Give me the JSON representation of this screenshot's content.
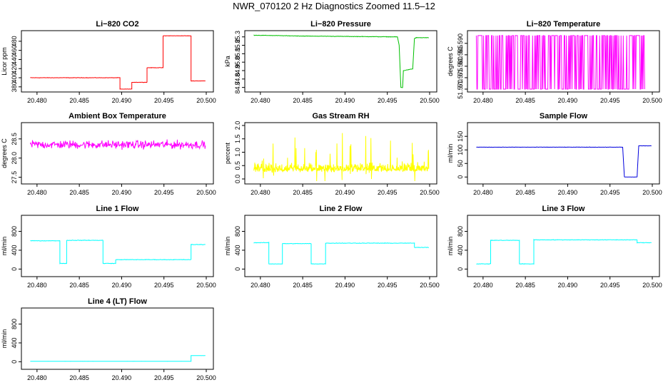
{
  "page": {
    "title": "NWR_070120  2 Hz Diagnostics Zoomed 11.5–12"
  },
  "chart_data": [
    {
      "type": "line",
      "title": "Li−820 CO2",
      "ylabel": "Licor ppm",
      "xticks": [
        "20.480",
        "20.485",
        "20.490",
        "20.495",
        "20.500"
      ],
      "xlim": [
        20.479,
        20.5
      ],
      "yticks": [
        "380",
        "400",
        "420",
        "440",
        "460",
        "480"
      ],
      "ylim": [
        375,
        497
      ],
      "color": "#ff0000",
      "noise": 0.6,
      "series": [
        {
          "x": [
            20.4792,
            20.4898,
            20.4898,
            20.4912,
            20.4912,
            20.493,
            20.493,
            20.4949,
            20.4949,
            20.4982,
            20.4982,
            20.4999
          ],
          "y": [
            400,
            400,
            375,
            375,
            390,
            390,
            422,
            422,
            492,
            492,
            393,
            393
          ]
        }
      ]
    },
    {
      "type": "line",
      "title": "Li−820 Pressure",
      "ylabel": "kPa",
      "xticks": [
        "20.480",
        "20.485",
        "20.490",
        "20.495",
        "20.500"
      ],
      "xlim": [
        20.479,
        20.5
      ],
      "yticks": [
        "84.7",
        "84.8",
        "84.9",
        "85.0",
        "85.1",
        "85.2",
        "85.3"
      ],
      "ylim": [
        84.68,
        85.34
      ],
      "color": "#00c000",
      "noise": 0.004,
      "series": [
        {
          "x": [
            20.4792,
            20.485,
            20.4962,
            20.4964,
            20.4966,
            20.4968,
            20.4969,
            20.498,
            20.4982,
            20.4984,
            20.4999
          ],
          "y": [
            85.32,
            85.31,
            85.3,
            85.2,
            84.7,
            84.7,
            84.9,
            84.92,
            85.28,
            85.29,
            85.29
          ]
        }
      ]
    },
    {
      "type": "line",
      "title": "Li−820 Temperature",
      "ylabel": "degrees C",
      "xticks": [
        "20.480",
        "20.485",
        "20.490",
        "20.495",
        "20.500"
      ],
      "xlim": [
        20.479,
        20.5
      ],
      "yticks": [
        "51.570",
        "51.575",
        "51.580",
        "51.585",
        "51.590"
      ],
      "ylim": [
        51.57,
        51.5943
      ],
      "color": "#ff00ff",
      "pattern": "binary",
      "series": [
        {
          "low": 51.57,
          "high": 51.5934
        }
      ]
    },
    {
      "type": "line",
      "title": "Ambient Box Temperature",
      "ylabel": "degrees C",
      "xticks": [
        "20.480",
        "20.485",
        "20.490",
        "20.495",
        "20.500"
      ],
      "xlim": [
        20.479,
        20.5
      ],
      "yticks": [
        "27.5",
        "28.0",
        "28.5"
      ],
      "ylim": [
        27.4,
        28.85
      ],
      "color": "#ff00ff",
      "noise": 0.16,
      "series": [
        {
          "x": [
            20.4792,
            20.4999
          ],
          "y": [
            28.35,
            28.35
          ]
        }
      ]
    },
    {
      "type": "line",
      "title": "Gas Stream RH",
      "ylabel": "percent",
      "xticks": [
        "20.480",
        "20.485",
        "20.490",
        "20.495",
        "20.500"
      ],
      "xlim": [
        20.479,
        20.5
      ],
      "yticks": [
        "0.0",
        "0.5",
        "1.0",
        "1.5",
        "2.0"
      ],
      "ylim": [
        -0.08,
        2.0
      ],
      "color": "#ffff00",
      "noise": 0.35,
      "pattern": "spiky",
      "series": [
        {
          "x": [
            20.4792,
            20.4999
          ],
          "y": [
            0.35,
            0.35
          ]
        }
      ]
    },
    {
      "type": "line",
      "title": "Sample Flow",
      "ylabel": "ml/min",
      "xticks": [
        "20.480",
        "20.485",
        "20.490",
        "20.495",
        "20.500"
      ],
      "xlim": [
        20.479,
        20.5
      ],
      "yticks": [
        "0",
        "50",
        "100",
        "150"
      ],
      "ylim": [
        -15,
        190
      ],
      "color": "#0000dd",
      "noise": 0.8,
      "series": [
        {
          "x": [
            20.4792,
            20.4965,
            20.4967,
            20.4982,
            20.4984,
            20.4999
          ],
          "y": [
            110,
            110,
            0,
            0,
            115,
            115
          ]
        }
      ]
    },
    {
      "type": "line",
      "title": "Line 1 Flow",
      "ylabel": "ml/min",
      "xticks": [
        "20.480",
        "20.485",
        "20.490",
        "20.495",
        "20.500"
      ],
      "xlim": [
        20.479,
        20.5
      ],
      "yticks": [
        "0",
        "400",
        "800"
      ],
      "ylim": [
        -100,
        1080
      ],
      "color": "#00ffff",
      "noise": 8,
      "series": [
        {
          "x": [
            20.4792,
            20.4827,
            20.4827,
            20.4835,
            20.4835,
            20.4878,
            20.4878,
            20.4893,
            20.4893,
            20.4982,
            20.4982,
            20.4999
          ],
          "y": [
            600,
            600,
            120,
            120,
            610,
            610,
            120,
            120,
            200,
            200,
            520,
            520
          ]
        }
      ]
    },
    {
      "type": "line",
      "title": "Line 2 Flow",
      "ylabel": "ml/min",
      "xticks": [
        "20.480",
        "20.485",
        "20.490",
        "20.495",
        "20.500"
      ],
      "xlim": [
        20.479,
        20.5
      ],
      "yticks": [
        "0",
        "400",
        "800"
      ],
      "ylim": [
        -100,
        1080
      ],
      "color": "#00ffff",
      "noise": 8,
      "series": [
        {
          "x": [
            20.4792,
            20.481,
            20.481,
            20.4826,
            20.4826,
            20.486,
            20.486,
            20.4877,
            20.4877,
            20.4982,
            20.4982,
            20.4999
          ],
          "y": [
            560,
            560,
            110,
            110,
            540,
            540,
            110,
            110,
            550,
            550,
            460,
            460
          ]
        }
      ]
    },
    {
      "type": "line",
      "title": "Line 3 Flow",
      "ylabel": "ml/min",
      "xticks": [
        "20.480",
        "20.485",
        "20.490",
        "20.495",
        "20.500"
      ],
      "xlim": [
        20.479,
        20.5
      ],
      "yticks": [
        "0",
        "400",
        "800"
      ],
      "ylim": [
        -100,
        1080
      ],
      "color": "#00ffff",
      "noise": 8,
      "series": [
        {
          "x": [
            20.4792,
            20.4809,
            20.4809,
            20.4843,
            20.4843,
            20.486,
            20.486,
            20.4982,
            20.4982,
            20.4999
          ],
          "y": [
            110,
            110,
            610,
            610,
            110,
            110,
            620,
            620,
            560,
            560
          ]
        }
      ]
    },
    {
      "type": "line",
      "title": "Line 4 (LT) Flow",
      "ylabel": "ml/min",
      "xticks": [
        "20.480",
        "20.485",
        "20.490",
        "20.495",
        "20.500"
      ],
      "xlim": [
        20.479,
        20.5
      ],
      "yticks": [
        "0",
        "400",
        "800"
      ],
      "ylim": [
        -100,
        1080
      ],
      "color": "#00ffff",
      "noise": 2,
      "series": [
        {
          "x": [
            20.4792,
            20.4982,
            20.4982,
            20.4999
          ],
          "y": [
            10,
            10,
            130,
            130
          ]
        }
      ]
    }
  ]
}
